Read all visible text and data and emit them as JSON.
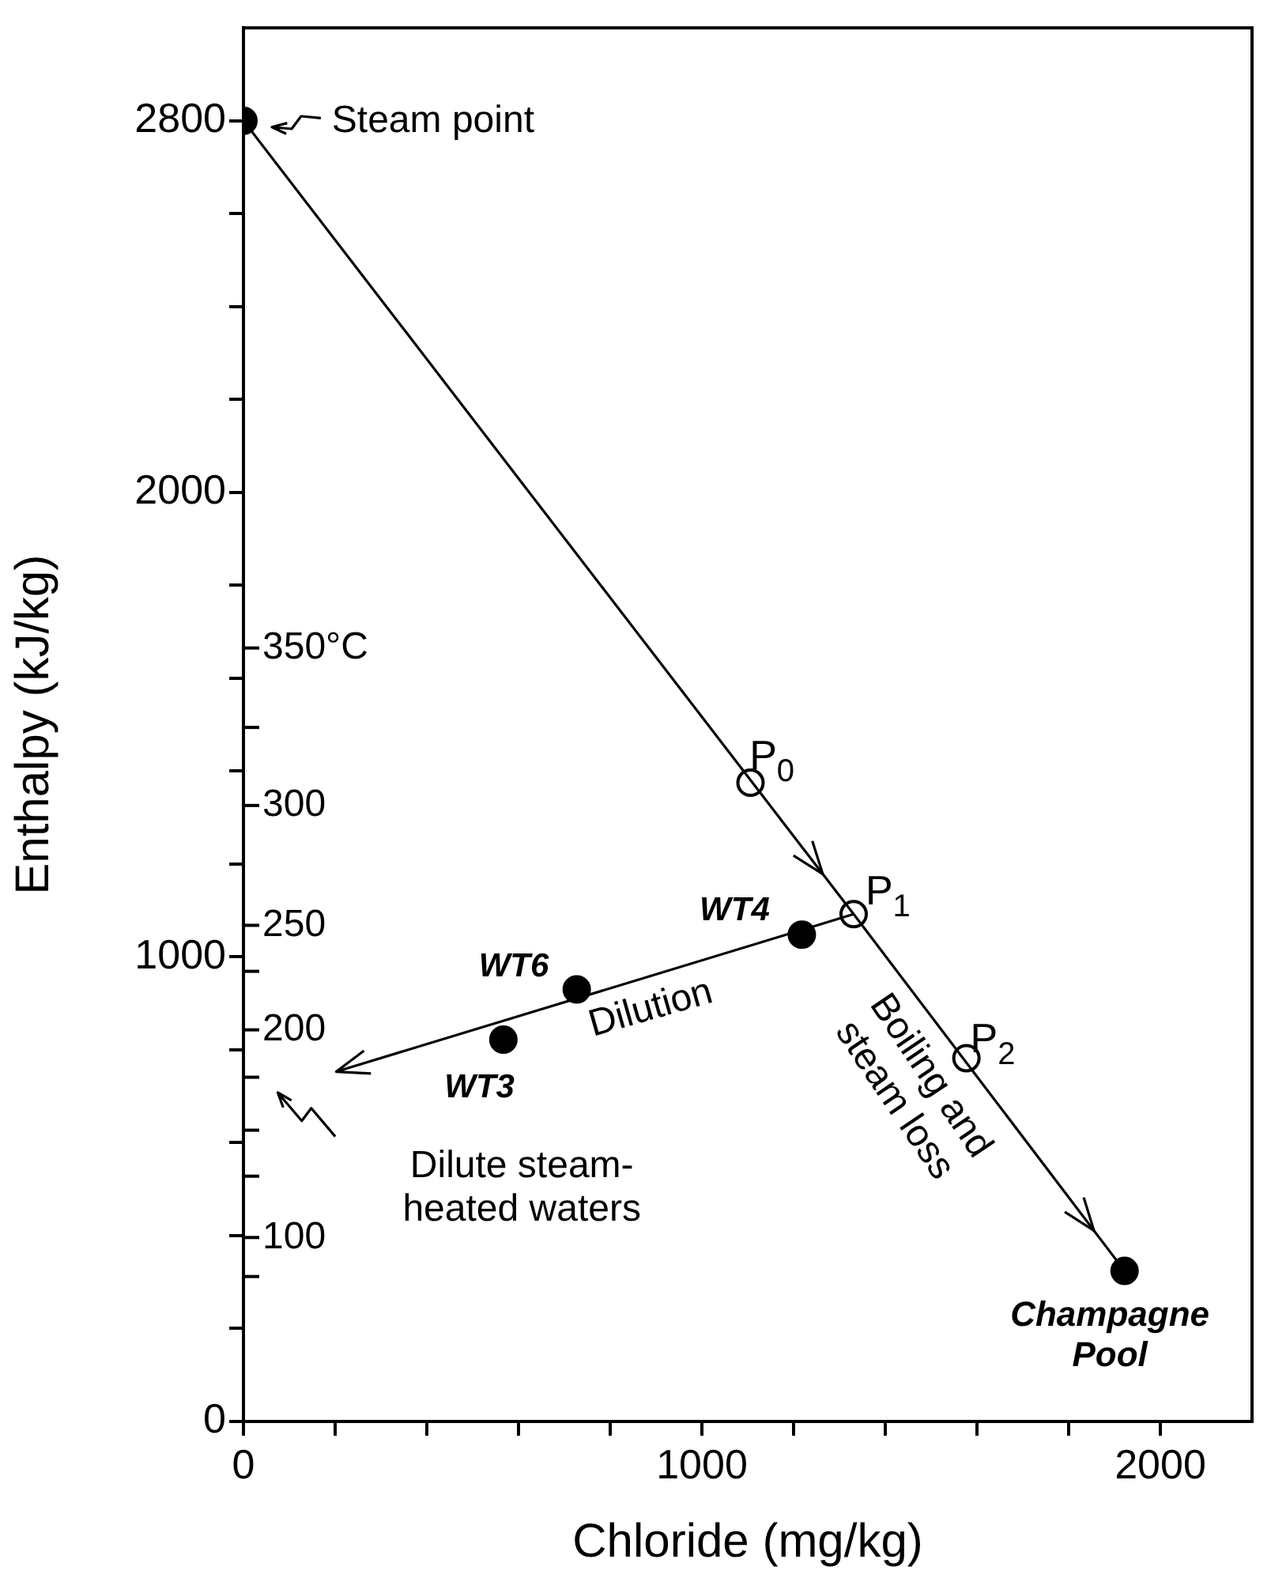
{
  "chart_data": {
    "type": "scatter",
    "xlabel": "Chloride (mg/kg)",
    "ylabel": "Enthalpy (kJ/kg)",
    "xlim": [
      0,
      2200
    ],
    "xticks": [
      0,
      {
        "value": 200,
        "label": null
      },
      {
        "value": 400,
        "label": null
      },
      {
        "value": 600,
        "label": null
      },
      {
        "value": 800,
        "label": null
      },
      1000,
      {
        "value": 1200,
        "label": null
      },
      {
        "value": 1400,
        "label": null
      },
      {
        "value": 1600,
        "label": null
      },
      {
        "value": 1800,
        "label": null
      },
      2000
    ],
    "ylim": [
      0,
      3000
    ],
    "yticks": [
      0,
      {
        "value": 200,
        "label": null
      },
      {
        "value": 400,
        "label": null
      },
      {
        "value": 600,
        "label": null
      },
      {
        "value": 800,
        "label": null
      },
      1000,
      {
        "value": 1200,
        "label": null
      },
      {
        "value": 1400,
        "label": null
      },
      {
        "value": 1600,
        "label": null
      },
      {
        "value": 1800,
        "label": null
      },
      2000,
      {
        "value": 2200,
        "label": null
      },
      {
        "value": 2400,
        "label": null
      },
      {
        "value": 2600,
        "label": null
      },
      2800
    ],
    "grid": false,
    "legend": false,
    "series": [
      {
        "type": "line",
        "color": "#000000",
        "marker": "none",
        "line_style": "solid",
        "x": [
          0,
          1331
        ],
        "values": [
          2800,
          1092
        ]
      },
      {
        "type": "line",
        "color": "#000000",
        "marker": "none",
        "line_style": "solid",
        "x": [
          1331,
          1922
        ],
        "values": [
          1092,
          324
        ]
      },
      {
        "color": "#000000",
        "marker": "circle",
        "x": [
          0,
          1218,
          727,
          567,
          1922
        ],
        "values": [
          2800,
          1048,
          930,
          822,
          324
        ]
      },
      {
        "color": "#ffffff",
        "marker": "circle",
        "x": [
          1106,
          1331,
          1577
        ],
        "values": [
          1375,
          1092,
          782
        ]
      }
    ],
    "annotations": [
      {
        "text": "Steam point",
        "x": 0,
        "y": 2800
      },
      "P$_{0}$",
      "P$_{1}$",
      "P$_{2}$",
      "WT4",
      "WT6",
      "WT3",
      "Dilution",
      "Boiling and\nsteam loss",
      "Dilute steam-\nheated waters",
      "Champagne\nPool",
      "350°C",
      "300",
      "250",
      "200",
      "100"
    ]
  }
}
